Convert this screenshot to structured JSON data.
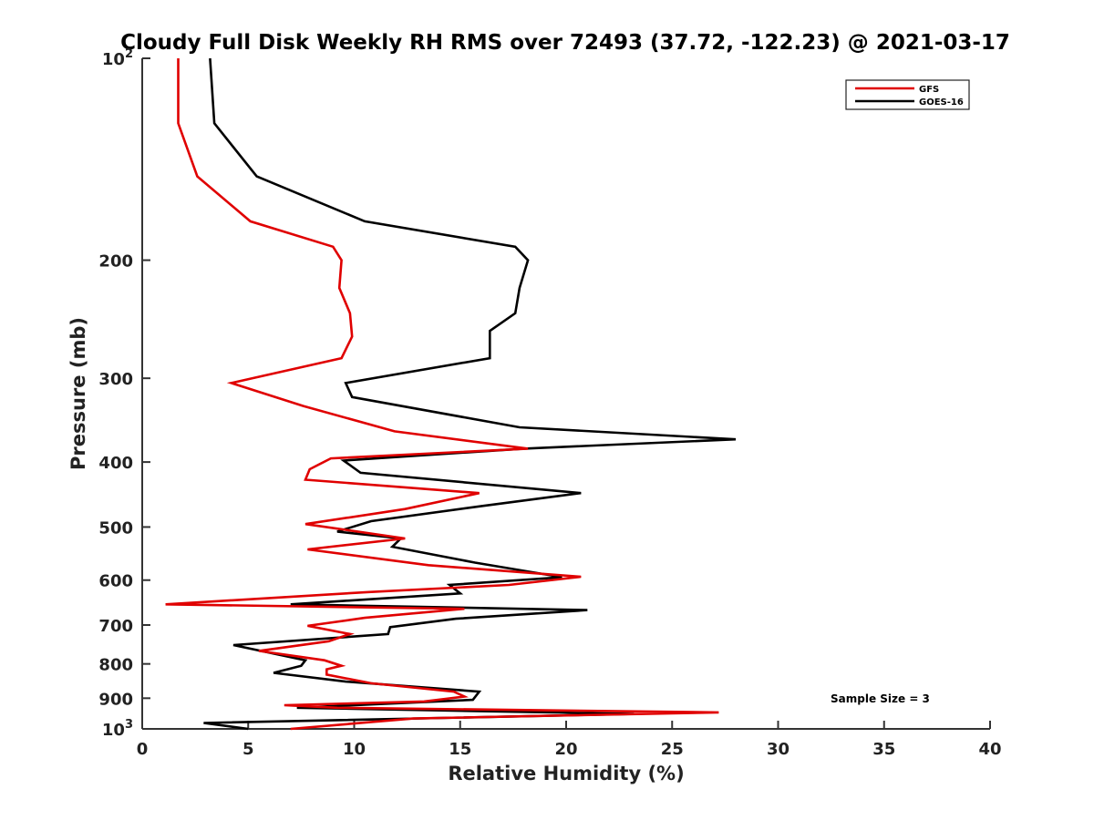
{
  "chart_data": {
    "type": "line",
    "title": "Cloudy Full Disk Weekly RH RMS over 72493 (37.72, -122.23) @ 2021-03-17",
    "xlabel": "Relative Humidity (%)",
    "ylabel": "Pressure (mb)",
    "xlim": [
      0,
      40
    ],
    "ylim": [
      100,
      1000
    ],
    "y_scale": "log",
    "y_reversed": true,
    "x_ticks": [
      "0",
      "5",
      "10",
      "15",
      "20",
      "25",
      "30",
      "35",
      "40"
    ],
    "y_ticks": [
      {
        "value": 100,
        "base": "10",
        "exp": "2"
      },
      {
        "value": 200,
        "label": "200"
      },
      {
        "value": 300,
        "label": "300"
      },
      {
        "value": 400,
        "label": "400"
      },
      {
        "value": 500,
        "label": "500"
      },
      {
        "value": 600,
        "label": "600"
      },
      {
        "value": 700,
        "label": "700"
      },
      {
        "value": 800,
        "label": "800"
      },
      {
        "value": 900,
        "label": "900"
      },
      {
        "value": 1000,
        "base": "10",
        "exp": "3"
      }
    ],
    "legend_position": "top-right",
    "grid": false,
    "annotation": "Sample Size = 3",
    "series": [
      {
        "name": "GFS",
        "color": "#e00000",
        "points": [
          [
            1.7,
            100
          ],
          [
            1.7,
            125
          ],
          [
            2.6,
            150
          ],
          [
            5.1,
            175
          ],
          [
            9.0,
            191
          ],
          [
            9.4,
            200
          ],
          [
            9.3,
            220
          ],
          [
            9.8,
            240
          ],
          [
            9.9,
            260
          ],
          [
            9.4,
            280
          ],
          [
            4.2,
            305
          ],
          [
            7.6,
            330
          ],
          [
            11.9,
            360
          ],
          [
            18.2,
            382
          ],
          [
            8.9,
            395
          ],
          [
            7.9,
            410
          ],
          [
            7.7,
            425
          ],
          [
            15.9,
            445
          ],
          [
            12.4,
            470
          ],
          [
            7.7,
            495
          ],
          [
            12.4,
            520
          ],
          [
            7.8,
            540
          ],
          [
            13.5,
            570
          ],
          [
            20.7,
            593
          ],
          [
            17.3,
            610
          ],
          [
            10.7,
            625
          ],
          [
            1.1,
            652
          ],
          [
            15.2,
            662
          ],
          [
            10.5,
            683
          ],
          [
            7.8,
            702
          ],
          [
            9.8,
            722
          ],
          [
            8.8,
            740
          ],
          [
            5.5,
            765
          ],
          [
            8.6,
            790
          ],
          [
            9.4,
            805
          ],
          [
            8.7,
            815
          ],
          [
            8.7,
            830
          ],
          [
            10.8,
            855
          ],
          [
            14.7,
            880
          ],
          [
            15.2,
            895
          ],
          [
            13.3,
            910
          ],
          [
            6.7,
            922
          ],
          [
            9.2,
            930
          ],
          [
            27.2,
            945
          ],
          [
            12.8,
            965
          ],
          [
            7.0,
            1000
          ]
        ]
      },
      {
        "name": "GOES-16",
        "color": "#000000",
        "points": [
          [
            3.2,
            100
          ],
          [
            3.4,
            125
          ],
          [
            5.4,
            150
          ],
          [
            10.5,
            175
          ],
          [
            17.6,
            191
          ],
          [
            18.2,
            200
          ],
          [
            17.8,
            220
          ],
          [
            17.6,
            240
          ],
          [
            16.4,
            255
          ],
          [
            16.4,
            280
          ],
          [
            9.6,
            305
          ],
          [
            9.9,
            320
          ],
          [
            17.8,
            355
          ],
          [
            28.0,
            370
          ],
          [
            18.0,
            382
          ],
          [
            9.5,
            398
          ],
          [
            10.3,
            415
          ],
          [
            20.7,
            445
          ],
          [
            16.1,
            465
          ],
          [
            10.8,
            490
          ],
          [
            9.2,
            508
          ],
          [
            12.2,
            520
          ],
          [
            11.8,
            535
          ],
          [
            15.7,
            565
          ],
          [
            19.8,
            594
          ],
          [
            14.5,
            610
          ],
          [
            15.0,
            628
          ],
          [
            7.0,
            652
          ],
          [
            21.0,
            665
          ],
          [
            14.8,
            685
          ],
          [
            11.7,
            705
          ],
          [
            11.6,
            722
          ],
          [
            4.3,
            750
          ],
          [
            7.7,
            790
          ],
          [
            7.5,
            805
          ],
          [
            6.2,
            825
          ],
          [
            9.6,
            850
          ],
          [
            15.9,
            880
          ],
          [
            15.6,
            905
          ],
          [
            7.3,
            930
          ],
          [
            23.2,
            950
          ],
          [
            2.9,
            980
          ],
          [
            5.0,
            1000
          ]
        ]
      }
    ]
  }
}
